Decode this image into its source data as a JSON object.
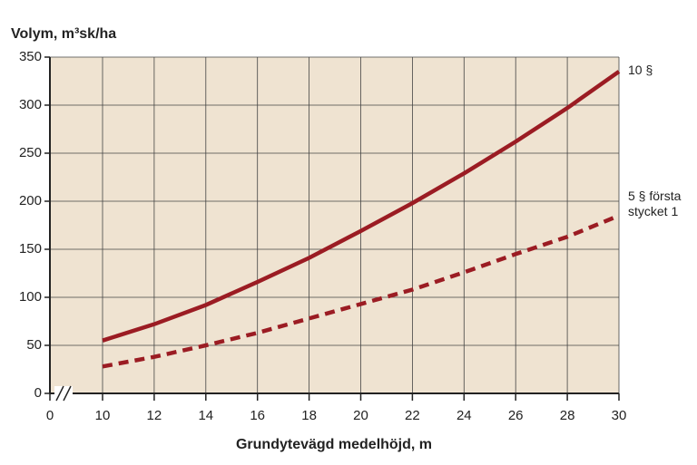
{
  "chart_data": {
    "type": "line",
    "y_label": "Volym, m³sk/ha",
    "x_label": "Grundytevägd medelhöjd, m",
    "x": [
      10,
      12,
      14,
      16,
      18,
      20,
      22,
      24,
      26,
      28,
      30
    ],
    "series": [
      {
        "name": "10 §",
        "color": "#9b1c23",
        "style": "solid",
        "values": [
          55,
          72,
          92,
          116,
          141,
          169,
          198,
          229,
          262,
          297,
          335
        ]
      },
      {
        "name": "5 § första stycket 1",
        "color": "#9b1c23",
        "style": "dashed",
        "values": [
          28,
          38,
          50,
          63,
          78,
          93,
          108,
          126,
          145,
          163,
          185
        ]
      }
    ],
    "xlim": [
      0,
      30
    ],
    "x_break": [
      0,
      10
    ],
    "xticks": [
      0,
      10,
      12,
      14,
      16,
      18,
      20,
      22,
      24,
      26,
      28,
      30
    ],
    "ylim": [
      0,
      350
    ],
    "yticks": [
      0,
      50,
      100,
      150,
      200,
      250,
      300,
      350
    ],
    "grid": true,
    "background": "#efe3d1"
  }
}
